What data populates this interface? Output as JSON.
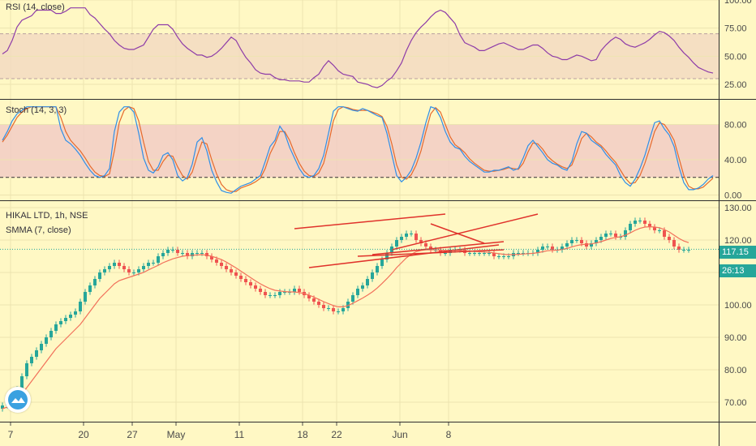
{
  "colors": {
    "background": "#fff8c4",
    "grid": "#ece4b0",
    "separator": "#2d2d2d",
    "axis_text": "#4a4a4a",
    "rsi_line": "#8e3ca8",
    "rsi_band_fill": "#f3d8c2",
    "stoch_k": "#2f8fe8",
    "stoch_d": "#e66a2c",
    "stoch_band_fill": "#f1c9c6",
    "candle_up": "#26a69a",
    "candle_down": "#ef5350",
    "smma_line": "#f2705a",
    "trendline": "#e0322b",
    "last_price_bg": "#26a69a",
    "last_price_line": "#26a69a"
  },
  "chart_data": [
    {
      "type": "line",
      "legend": "RSI (14, close)",
      "y_ticks": [
        "100.00",
        "75.00",
        "50.00",
        "25.00"
      ],
      "ylim": [
        12,
        100
      ],
      "bands": [
        30,
        70
      ],
      "series": [
        {
          "name": "RSI",
          "values": [
            52,
            55,
            64,
            76,
            82,
            84,
            86,
            91,
            91,
            91,
            91,
            88,
            88,
            90,
            93,
            93,
            93,
            93,
            87,
            84,
            79,
            74,
            70,
            64,
            60,
            57,
            56,
            56,
            58,
            60,
            67,
            74,
            78,
            78,
            78,
            74,
            67,
            61,
            57,
            54,
            51,
            51,
            49,
            50,
            53,
            57,
            62,
            67,
            64,
            56,
            49,
            44,
            38,
            35,
            34,
            34,
            31,
            29,
            29,
            28,
            28,
            28,
            27,
            27,
            31,
            34,
            41,
            46,
            42,
            37,
            34,
            33,
            32,
            27,
            26,
            25,
            23,
            22,
            24,
            28,
            31,
            37,
            44,
            55,
            64,
            71,
            76,
            80,
            85,
            89,
            91,
            89,
            84,
            79,
            69,
            62,
            60,
            58,
            55,
            55,
            57,
            59,
            61,
            62,
            60,
            58,
            56,
            56,
            58,
            60,
            60,
            57,
            53,
            50,
            49,
            47,
            47,
            49,
            51,
            50,
            48,
            46,
            47,
            55,
            60,
            64,
            67,
            65,
            61,
            59,
            58,
            60,
            62,
            65,
            69,
            72,
            71,
            68,
            64,
            58,
            53,
            49,
            44,
            40,
            38,
            36,
            35
          ]
        }
      ]
    },
    {
      "type": "line",
      "legend": "Stoch (14, 3, 3)",
      "y_ticks": [
        "80.00",
        "40.00",
        "0.00"
      ],
      "ylim": [
        -6,
        108
      ],
      "bands": [
        20,
        80
      ],
      "series": [
        {
          "name": "%K",
          "values": [
            62,
            72,
            84,
            92,
            96,
            100,
            100,
            100,
            100,
            100,
            100,
            100,
            75,
            62,
            58,
            52,
            45,
            36,
            28,
            22,
            20,
            22,
            30,
            72,
            94,
            100,
            100,
            94,
            70,
            42,
            28,
            25,
            32,
            45,
            48,
            40,
            22,
            16,
            20,
            35,
            60,
            65,
            50,
            28,
            15,
            5,
            3,
            2,
            6,
            10,
            12,
            14,
            18,
            22,
            38,
            55,
            62,
            78,
            70,
            54,
            42,
            30,
            22,
            20,
            22,
            30,
            45,
            70,
            95,
            100,
            100,
            98,
            96,
            95,
            98,
            96,
            93,
            90,
            88,
            70,
            46,
            22,
            15,
            20,
            28,
            42,
            60,
            82,
            100,
            98,
            88,
            72,
            60,
            54,
            52,
            44,
            38,
            34,
            30,
            26,
            26,
            28,
            28,
            30,
            32,
            28,
            30,
            42,
            56,
            62,
            55,
            48,
            40,
            36,
            34,
            30,
            28,
            38,
            58,
            72,
            70,
            62,
            58,
            54,
            46,
            40,
            34,
            22,
            14,
            10,
            18,
            30,
            45,
            64,
            82,
            84,
            75,
            68,
            55,
            32,
            14,
            6,
            6,
            8,
            12,
            18,
            22
          ]
        },
        {
          "name": "%D",
          "values": [
            60,
            68,
            78,
            88,
            94,
            98,
            100,
            100,
            100,
            100,
            100,
            100,
            88,
            72,
            62,
            56,
            50,
            42,
            33,
            26,
            22,
            21,
            24,
            50,
            82,
            96,
            100,
            98,
            84,
            60,
            38,
            28,
            28,
            38,
            45,
            44,
            32,
            22,
            18,
            26,
            44,
            60,
            58,
            40,
            24,
            12,
            6,
            4,
            4,
            8,
            10,
            12,
            15,
            19,
            30,
            47,
            58,
            72,
            72,
            62,
            48,
            36,
            27,
            22,
            21,
            25,
            36,
            58,
            84,
            97,
            100,
            99,
            97,
            96,
            96,
            96,
            94,
            92,
            89,
            78,
            58,
            34,
            20,
            18,
            23,
            34,
            50,
            72,
            92,
            99,
            94,
            80,
            66,
            57,
            53,
            48,
            41,
            36,
            32,
            28,
            27,
            27,
            28,
            29,
            31,
            30,
            29,
            36,
            49,
            59,
            58,
            52,
            44,
            39,
            35,
            32,
            30,
            34,
            48,
            64,
            70,
            66,
            60,
            56,
            50,
            43,
            37,
            28,
            19,
            13,
            14,
            22,
            36,
            53,
            72,
            82,
            80,
            72,
            62,
            42,
            22,
            10,
            7,
            7,
            9,
            14,
            19
          ]
        }
      ]
    },
    {
      "type": "candlestick",
      "legend": {
        "symbol": "HIKAL LTD, 1h, NSE",
        "indicator": "SMMA (7, close)"
      },
      "y_ticks": [
        "130.00",
        "120.00",
        "110.00",
        "100.00",
        "90.00",
        "80.00",
        "70.00"
      ],
      "ylim": [
        64,
        132
      ],
      "last_price": "117.15",
      "countdown": "26:13",
      "closes": [
        69,
        70,
        72,
        74,
        78,
        82,
        84,
        86,
        88,
        90,
        92,
        94,
        95,
        96,
        97,
        98,
        101,
        104,
        106,
        108,
        110,
        111,
        112,
        113,
        112,
        111,
        110,
        110,
        111,
        112,
        113,
        113,
        115,
        116,
        117,
        117,
        116,
        116,
        115,
        116,
        116,
        116,
        115,
        114,
        113,
        112,
        111,
        110,
        109,
        108,
        107,
        106,
        105,
        104,
        103,
        103,
        103,
        104,
        104,
        104,
        105,
        104,
        103,
        102,
        101,
        100,
        99,
        99,
        98,
        98,
        99,
        101,
        103,
        105,
        106,
        108,
        110,
        112,
        114,
        116,
        118,
        120,
        121,
        122,
        122,
        120,
        119,
        118,
        117,
        117,
        116,
        116,
        117,
        117,
        117,
        116,
        116,
        116,
        116,
        116,
        116,
        115,
        115,
        115,
        115,
        116,
        116,
        116,
        116,
        116,
        117,
        118,
        118,
        117,
        117,
        118,
        119,
        120,
        120,
        119,
        118,
        119,
        120,
        121,
        122,
        122,
        121,
        121,
        123,
        125,
        126,
        126,
        125,
        124,
        123,
        123,
        121,
        120,
        118,
        117,
        117,
        117
      ],
      "smma": [
        68,
        68.5,
        69.5,
        70.8,
        72.5,
        74.5,
        76.5,
        78.5,
        80.5,
        82.5,
        84.5,
        86.5,
        88,
        89.5,
        91,
        92.5,
        94,
        96,
        98,
        100,
        102,
        103.5,
        105,
        106.5,
        107.5,
        108,
        108.5,
        109,
        109.5,
        110,
        110.8,
        111.5,
        112.2,
        113,
        113.6,
        114.2,
        114.6,
        115,
        115.2,
        115.3,
        115.4,
        115.5,
        115.3,
        115,
        114.5,
        114,
        113.2,
        112.3,
        111.4,
        110.4,
        109.4,
        108.4,
        107.4,
        106.5,
        105.7,
        105,
        104.5,
        104.3,
        104.1,
        104,
        104,
        103.8,
        103.5,
        103,
        102.4,
        101.7,
        101,
        100.4,
        99.8,
        99.4,
        99.4,
        99.8,
        100.5,
        101.3,
        102.1,
        103,
        104,
        105.2,
        106.6,
        108.1,
        109.7,
        111.5,
        113,
        114.5,
        115.6,
        116.4,
        116.8,
        117,
        117,
        117,
        116.9,
        116.8,
        116.8,
        116.8,
        116.8,
        116.7,
        116.6,
        116.5,
        116.4,
        116.3,
        116.2,
        116,
        115.8,
        115.6,
        115.5,
        115.5,
        115.6,
        115.7,
        115.8,
        115.9,
        116.1,
        116.4,
        116.7,
        116.8,
        116.9,
        117.1,
        117.4,
        117.9,
        118.3,
        118.6,
        118.7,
        118.8,
        119.1,
        119.5,
        120,
        120.5,
        120.8,
        121,
        121.5,
        122.2,
        123,
        123.6,
        124,
        124.1,
        124,
        123.8,
        123.2,
        122.5,
        121.5,
        120.5,
        119.7,
        119.2
      ],
      "trendlines": [
        {
          "x1": 60,
          "y1": 123.5,
          "x2": 91,
          "y2": 128
        },
        {
          "x1": 63,
          "y1": 111.5,
          "x2": 102,
          "y2": 118.5
        },
        {
          "x1": 80,
          "y1": 117,
          "x2": 110,
          "y2": 128
        },
        {
          "x1": 76,
          "y1": 115.5,
          "x2": 103,
          "y2": 119.5
        },
        {
          "x1": 88,
          "y1": 125,
          "x2": 99,
          "y2": 119
        },
        {
          "x1": 73,
          "y1": 115,
          "x2": 103,
          "y2": 117
        }
      ]
    }
  ],
  "x_axis": {
    "labels": [
      {
        "text": "7",
        "bar": 0
      },
      {
        "text": "20",
        "bar": 15
      },
      {
        "text": "27",
        "bar": 25
      },
      {
        "text": "May",
        "bar": 34
      },
      {
        "text": "11",
        "bar": 47
      },
      {
        "text": "18",
        "bar": 60
      },
      {
        "text": "22",
        "bar": 67
      },
      {
        "text": "Jun",
        "bar": 80
      },
      {
        "text": "8",
        "bar": 90
      }
    ]
  }
}
